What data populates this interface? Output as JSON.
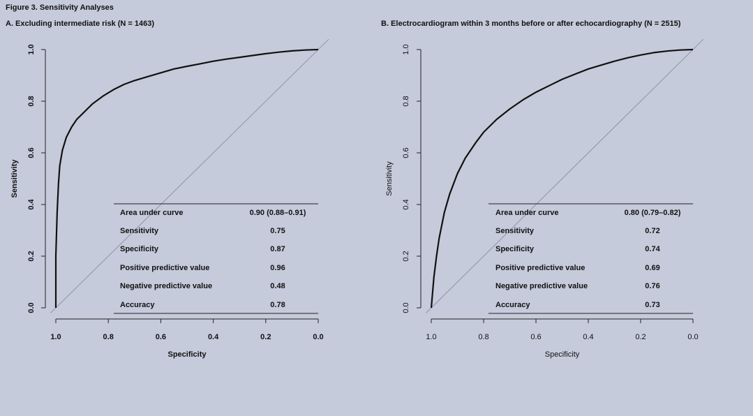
{
  "figure_title": "Figure 3. Sensitivity Analyses",
  "chart_data": [
    {
      "type": "line",
      "panel_title": "A. Excluding intermediate risk (N = 1463)",
      "xlabel": "Specificity",
      "ylabel": "Sensitivity",
      "xlim": [
        1.0,
        0.0
      ],
      "ylim": [
        0.0,
        1.0
      ],
      "x_ticks": [
        "1.0",
        "0.8",
        "0.6",
        "0.4",
        "0.2",
        "0.0"
      ],
      "y_ticks": [
        "0.0",
        "0.2",
        "0.4",
        "0.6",
        "0.8",
        "1.0"
      ],
      "grid": false,
      "reference_line": "diagonal",
      "series": [
        {
          "x": [
            1.0,
            1.0,
            0.995,
            0.99,
            0.985,
            0.975,
            0.96,
            0.94,
            0.92,
            0.89,
            0.86,
            0.82,
            0.78,
            0.74,
            0.7,
            0.65,
            0.6,
            0.55,
            0.5,
            0.45,
            0.4,
            0.35,
            0.3,
            0.25,
            0.2,
            0.15,
            0.1,
            0.05,
            0.0
          ],
          "y": [
            0.0,
            0.2,
            0.37,
            0.48,
            0.55,
            0.61,
            0.66,
            0.7,
            0.73,
            0.76,
            0.79,
            0.82,
            0.845,
            0.865,
            0.88,
            0.895,
            0.91,
            0.925,
            0.935,
            0.945,
            0.955,
            0.963,
            0.97,
            0.977,
            0.984,
            0.99,
            0.995,
            0.998,
            1.0
          ]
        }
      ],
      "stats_table": [
        {
          "label": "Area under curve",
          "value": "0.90 (0.88–0.91)"
        },
        {
          "label": "Sensitivity",
          "value": "0.75"
        },
        {
          "label": "Specificity",
          "value": "0.87"
        },
        {
          "label": "Positive predictive value",
          "value": "0.96"
        },
        {
          "label": "Negative predictive value",
          "value": "0.48"
        },
        {
          "label": "Accuracy",
          "value": "0.78"
        }
      ]
    },
    {
      "type": "line",
      "panel_title": "B. Electrocardiogram within 3 months before or after echocardiography (N = 2515)",
      "xlabel": "Specificity",
      "ylabel": "Sensitivity",
      "xlim": [
        1.0,
        0.0
      ],
      "ylim": [
        0.0,
        1.0
      ],
      "x_ticks": [
        "1.0",
        "0.8",
        "0.6",
        "0.4",
        "0.2",
        "0.0"
      ],
      "y_ticks": [
        "0.0",
        "0.2",
        "0.4",
        "0.6",
        "0.8",
        "1.0"
      ],
      "grid": false,
      "reference_line": "diagonal",
      "series": [
        {
          "x": [
            1.0,
            0.995,
            0.99,
            0.98,
            0.97,
            0.95,
            0.93,
            0.9,
            0.87,
            0.83,
            0.8,
            0.75,
            0.7,
            0.65,
            0.6,
            0.55,
            0.5,
            0.45,
            0.4,
            0.35,
            0.3,
            0.25,
            0.2,
            0.15,
            0.1,
            0.05,
            0.0
          ],
          "y": [
            0.0,
            0.06,
            0.12,
            0.2,
            0.27,
            0.37,
            0.44,
            0.52,
            0.58,
            0.64,
            0.68,
            0.73,
            0.77,
            0.805,
            0.835,
            0.86,
            0.885,
            0.905,
            0.925,
            0.94,
            0.955,
            0.968,
            0.979,
            0.988,
            0.994,
            0.998,
            1.0
          ]
        }
      ],
      "stats_table": [
        {
          "label": "Area under curve",
          "value": "0.80 (0.79–0.82)"
        },
        {
          "label": "Sensitivity",
          "value": "0.72"
        },
        {
          "label": "Specificity",
          "value": "0.74"
        },
        {
          "label": "Positive predictive value",
          "value": "0.69"
        },
        {
          "label": "Negative predictive value",
          "value": "0.76"
        },
        {
          "label": "Accuracy",
          "value": "0.73"
        }
      ]
    }
  ]
}
